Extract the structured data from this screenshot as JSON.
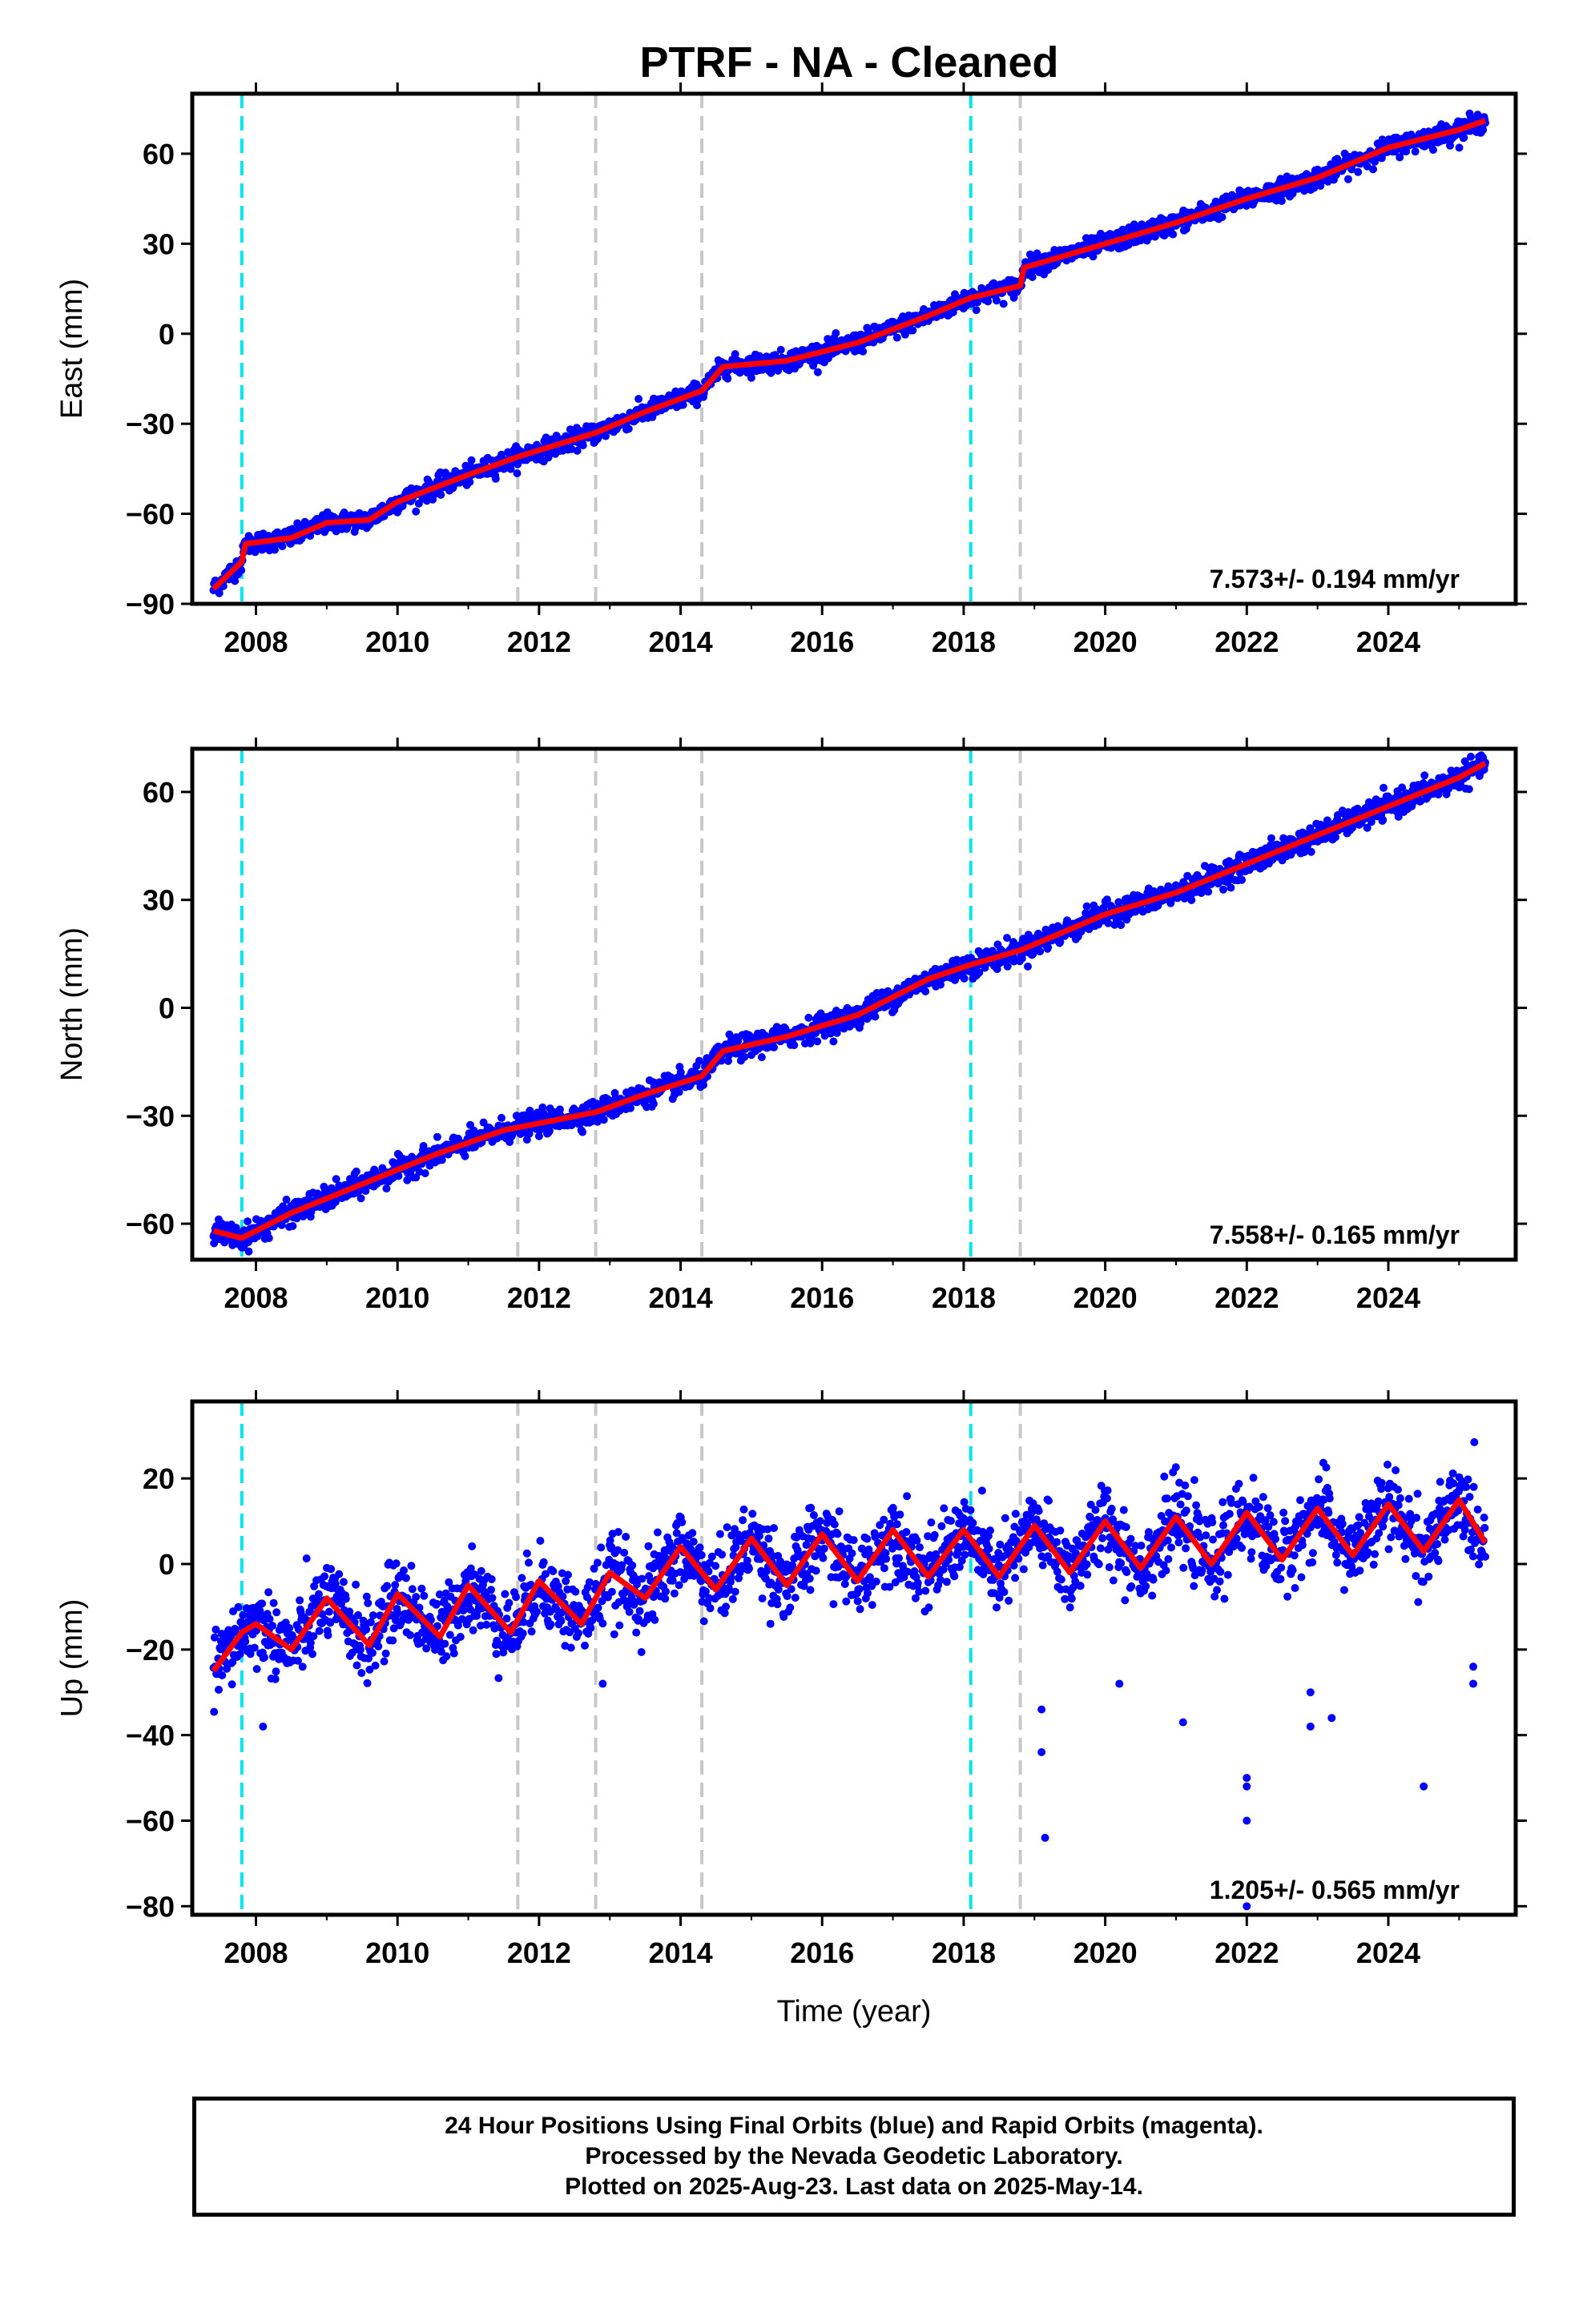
{
  "chart_data": {
    "title": "PTRF  - NA - Cleaned",
    "type": "scatter",
    "xlabel": "Time (year)",
    "xlim": [
      2007.1,
      2025.8
    ],
    "x_ticks": [
      "2008",
      "2010",
      "2012",
      "2014",
      "2016",
      "2018",
      "2020",
      "2022",
      "2024"
    ],
    "data_span": [
      2007.4,
      2025.37
    ],
    "colors": {
      "data": "#0000ff",
      "model": "#ff0000",
      "equipment_change": "#00e5ee",
      "other_event": "#c8c8c8"
    },
    "events": [
      {
        "year": 2007.8,
        "kind": "equipment_change"
      },
      {
        "year": 2011.7,
        "kind": "other_event"
      },
      {
        "year": 2012.8,
        "kind": "other_event"
      },
      {
        "year": 2014.3,
        "kind": "other_event"
      },
      {
        "year": 2018.1,
        "kind": "equipment_change"
      },
      {
        "year": 2018.8,
        "kind": "other_event"
      }
    ],
    "panels": [
      {
        "ylabel": "East (mm)",
        "ylim": [
          -90,
          80
        ],
        "y_ticks": [
          -90,
          -60,
          -30,
          0,
          30,
          60
        ],
        "y_tick_labels": [
          "−90",
          "−60",
          "−30",
          "0",
          "30",
          "60"
        ],
        "rate_label": "7.573+/- 0.194 mm/yr",
        "series": [
          {
            "values": [
              -86,
              -76,
              -68,
              -65,
              -60,
              -56,
              -52,
              -47,
              -42,
              -37,
              -32,
              -28,
              -22,
              -16,
              -9,
              -6,
              -4,
              2,
              7,
              12,
              14,
              22,
              27,
              32,
              38,
              42,
              50,
              56,
              62,
              66,
              72
            ]
          }
        ],
        "model_points": [
          [
            2007.4,
            -85
          ],
          [
            2007.8,
            -76
          ],
          [
            2007.85,
            -70
          ],
          [
            2008.5,
            -68
          ],
          [
            2009,
            -63
          ],
          [
            2009.6,
            -62
          ],
          [
            2010,
            -56
          ],
          [
            2011,
            -47
          ],
          [
            2011.7,
            -41
          ],
          [
            2012.8,
            -33
          ],
          [
            2013.5,
            -26
          ],
          [
            2014.3,
            -19
          ],
          [
            2014.6,
            -11
          ],
          [
            2015.5,
            -9
          ],
          [
            2016.5,
            -3
          ],
          [
            2017.5,
            6
          ],
          [
            2018.1,
            12
          ],
          [
            2018.8,
            16
          ],
          [
            2018.85,
            22
          ],
          [
            2020,
            30
          ],
          [
            2021,
            37
          ],
          [
            2022,
            45
          ],
          [
            2023,
            52
          ],
          [
            2024,
            62
          ],
          [
            2025,
            68
          ],
          [
            2025.37,
            71
          ]
        ]
      },
      {
        "ylabel": "North (mm)",
        "ylim": [
          -70,
          72
        ],
        "y_ticks": [
          -60,
          -30,
          0,
          30,
          60
        ],
        "y_tick_labels": [
          "−60",
          "−30",
          "0",
          "30",
          "60"
        ],
        "rate_label": "7.558+/- 0.165 mm/yr",
        "series": [
          {
            "values": [
              -63,
              -64,
              -58,
              -52,
              -46,
              -40,
              -34,
              -28,
              -24,
              -20,
              -13,
              -8,
              -2,
              5,
              12,
              18,
              23,
              30,
              37,
              44,
              50,
              56,
              63,
              68
            ]
          }
        ],
        "model_points": [
          [
            2007.4,
            -62
          ],
          [
            2007.8,
            -64
          ],
          [
            2008.5,
            -57
          ],
          [
            2009.5,
            -49
          ],
          [
            2010.5,
            -41
          ],
          [
            2011.5,
            -34
          ],
          [
            2012.8,
            -29
          ],
          [
            2013.5,
            -24
          ],
          [
            2014.3,
            -19
          ],
          [
            2014.6,
            -12
          ],
          [
            2015.5,
            -8
          ],
          [
            2016.5,
            -2
          ],
          [
            2017.5,
            8
          ],
          [
            2018.1,
            12
          ],
          [
            2018.8,
            16
          ],
          [
            2020,
            26
          ],
          [
            2021,
            32
          ],
          [
            2022,
            40
          ],
          [
            2023,
            48
          ],
          [
            2024,
            56
          ],
          [
            2025,
            64
          ],
          [
            2025.37,
            68
          ]
        ]
      },
      {
        "ylabel": "Up (mm)",
        "ylim": [
          -82,
          38
        ],
        "y_ticks": [
          -80,
          -60,
          -40,
          -20,
          0,
          20
        ],
        "y_tick_labels": [
          "−80",
          "−60",
          "−40",
          "−20",
          "0",
          "20"
        ],
        "rate_label": "1.205+/- 0.565 mm/yr",
        "series": [
          {
            "values": [
              -26,
              -14,
              -10,
              -8,
              -6,
              -5,
              -4,
              -3,
              -1,
              0,
              2,
              3,
              4,
              5,
              5,
              6,
              6,
              7,
              8,
              9,
              10
            ]
          }
        ],
        "model_points": [
          [
            2007.4,
            -25
          ],
          [
            2007.8,
            -16
          ],
          [
            2008,
            -14
          ],
          [
            2008.5,
            -20
          ],
          [
            2009,
            -8
          ],
          [
            2009.6,
            -19
          ],
          [
            2010,
            -7
          ],
          [
            2010.6,
            -17
          ],
          [
            2011,
            -5
          ],
          [
            2011.6,
            -16
          ],
          [
            2012,
            -4
          ],
          [
            2012.6,
            -14
          ],
          [
            2013,
            -2
          ],
          [
            2013.5,
            -8
          ],
          [
            2014,
            4
          ],
          [
            2014.5,
            -6
          ],
          [
            2015,
            6
          ],
          [
            2015.5,
            -5
          ],
          [
            2016,
            7
          ],
          [
            2016.5,
            -4
          ],
          [
            2017,
            8
          ],
          [
            2017.5,
            -3
          ],
          [
            2018,
            8
          ],
          [
            2018.5,
            -3
          ],
          [
            2019,
            9
          ],
          [
            2019.5,
            -2
          ],
          [
            2020,
            10
          ],
          [
            2020.5,
            -1
          ],
          [
            2021,
            11
          ],
          [
            2021.5,
            0
          ],
          [
            2022,
            12
          ],
          [
            2022.5,
            1
          ],
          [
            2023,
            13
          ],
          [
            2023.5,
            2
          ],
          [
            2024,
            14
          ],
          [
            2024.5,
            3
          ],
          [
            2025,
            15
          ],
          [
            2025.37,
            5
          ]
        ],
        "outliers": [
          [
            2008.1,
            -38
          ],
          [
            2012.9,
            -28
          ],
          [
            2019.1,
            -34
          ],
          [
            2019.1,
            -44
          ],
          [
            2019.15,
            -64
          ],
          [
            2020.2,
            -28
          ],
          [
            2021.1,
            -37
          ],
          [
            2022,
            -50
          ],
          [
            2022,
            -52
          ],
          [
            2022,
            -60
          ],
          [
            2022,
            -80
          ],
          [
            2022.9,
            -30
          ],
          [
            2022.9,
            -38
          ],
          [
            2023.2,
            -36
          ],
          [
            2024.5,
            -52
          ],
          [
            2025.2,
            -24
          ],
          [
            2025.2,
            -28
          ]
        ]
      }
    ]
  },
  "footer": {
    "lines": [
      "24 Hour Positions Using Final Orbits (blue) and Rapid Orbits (magenta).",
      "Processed by the Nevada Geodetic Laboratory.",
      "Plotted on 2025-Aug-23. Last data on 2025-May-14."
    ]
  }
}
